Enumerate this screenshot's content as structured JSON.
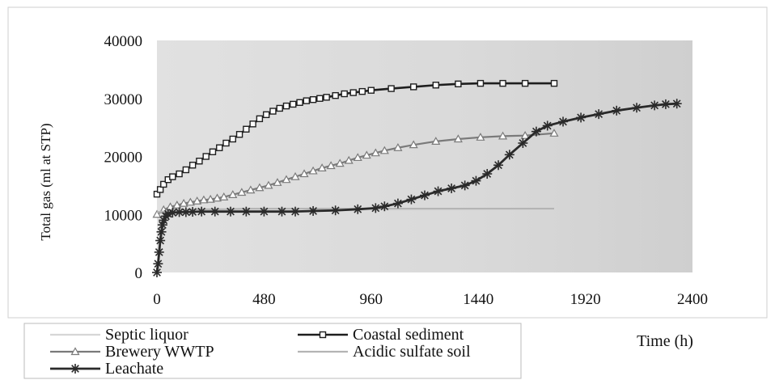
{
  "chart_data": {
    "type": "line",
    "title": "",
    "xlabel": "Time (h)",
    "ylabel": "Total gas (ml at STP)",
    "xlim": [
      0,
      2400
    ],
    "ylim": [
      0,
      40000
    ],
    "xticks": [
      0,
      480,
      960,
      1440,
      1920,
      2400
    ],
    "yticks": [
      0,
      10000,
      20000,
      30000,
      40000
    ],
    "grid": false,
    "legend_position": "bottom",
    "series": [
      {
        "name": "Septic liquor",
        "color": "#d6d6d6",
        "marker": "none",
        "x": [
          0,
          10,
          20,
          30,
          50,
          80,
          120,
          200,
          300,
          400,
          500,
          600,
          800,
          1000,
          1200,
          1400,
          1600,
          1780
        ],
        "y": [
          0,
          3000,
          6500,
          9000,
          10200,
          10500,
          10600,
          10700,
          10750,
          10800,
          10800,
          10800,
          10800,
          10800,
          10800,
          10800,
          10800,
          10800
        ]
      },
      {
        "name": "Coastal sediment",
        "color": "#1e1e1e",
        "marker": "square",
        "x": [
          0,
          15,
          30,
          50,
          70,
          100,
          130,
          160,
          190,
          220,
          250,
          280,
          310,
          340,
          370,
          400,
          430,
          460,
          490,
          520,
          550,
          580,
          610,
          640,
          670,
          700,
          730,
          760,
          800,
          840,
          880,
          920,
          960,
          1050,
          1150,
          1250,
          1350,
          1450,
          1550,
          1650,
          1780
        ],
        "y": [
          13500,
          14300,
          15200,
          16000,
          16500,
          17000,
          17700,
          18500,
          19200,
          20000,
          20800,
          21500,
          22300,
          23000,
          23800,
          24700,
          25600,
          26500,
          27200,
          27800,
          28300,
          28700,
          29000,
          29300,
          29600,
          29800,
          30000,
          30200,
          30500,
          30800,
          31000,
          31200,
          31400,
          31700,
          32000,
          32300,
          32500,
          32600,
          32600,
          32600,
          32600
        ]
      },
      {
        "name": "Brewery WWTP",
        "color": "#7a7a7a",
        "marker": "triangle",
        "x": [
          0,
          30,
          60,
          90,
          120,
          150,
          180,
          210,
          240,
          270,
          300,
          340,
          380,
          420,
          460,
          500,
          540,
          580,
          620,
          660,
          700,
          740,
          780,
          820,
          860,
          900,
          940,
          980,
          1020,
          1080,
          1150,
          1250,
          1350,
          1450,
          1550,
          1650,
          1780
        ],
        "y": [
          10000,
          10800,
          11300,
          11600,
          11900,
          12100,
          12300,
          12500,
          12600,
          12800,
          13000,
          13400,
          13800,
          14200,
          14600,
          15000,
          15500,
          16000,
          16500,
          17000,
          17500,
          18000,
          18400,
          18800,
          19300,
          19800,
          20200,
          20600,
          21000,
          21500,
          22000,
          22600,
          23000,
          23300,
          23500,
          23600,
          24000
        ]
      },
      {
        "name": "Acidic sulfate soil",
        "color": "#b4b4b4",
        "marker": "none",
        "x": [
          0,
          50,
          120,
          200,
          300,
          400,
          500,
          600,
          700,
          800,
          900,
          1000,
          1100,
          1200,
          1300,
          1400,
          1500,
          1600,
          1700,
          1780
        ],
        "y": [
          10400,
          10600,
          10800,
          10900,
          10900,
          11000,
          11000,
          11000,
          11000,
          11000,
          11000,
          11000,
          11000,
          11000,
          11000,
          11000,
          11000,
          11000,
          11000,
          11000
        ]
      },
      {
        "name": "Leachate",
        "color": "#2a2a2a",
        "marker": "star",
        "x": [
          0,
          5,
          10,
          15,
          20,
          25,
          30,
          40,
          50,
          70,
          100,
          130,
          160,
          200,
          260,
          330,
          400,
          480,
          560,
          620,
          700,
          800,
          900,
          980,
          1020,
          1080,
          1140,
          1200,
          1260,
          1320,
          1380,
          1430,
          1480,
          1530,
          1580,
          1640,
          1700,
          1750,
          1820,
          1900,
          1980,
          2060,
          2150,
          2230,
          2280,
          2330
        ],
        "y": [
          0,
          1500,
          3500,
          5500,
          7000,
          8200,
          9000,
          9700,
          10100,
          10300,
          10400,
          10400,
          10450,
          10500,
          10500,
          10500,
          10500,
          10500,
          10500,
          10500,
          10600,
          10700,
          10900,
          11100,
          11400,
          11900,
          12600,
          13300,
          14000,
          14500,
          15000,
          15800,
          17000,
          18500,
          20300,
          22300,
          24300,
          25300,
          26000,
          26700,
          27300,
          27900,
          28400,
          28800,
          29000,
          29100
        ]
      }
    ]
  }
}
